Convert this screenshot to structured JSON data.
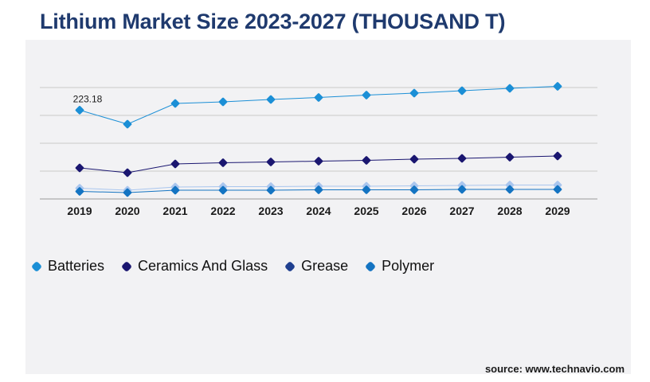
{
  "title": "Lithium Market Size 2023-2027 (THOUSAND T)",
  "source": "source: www.technavio.com",
  "chart_data": {
    "type": "line",
    "categories": [
      "2019",
      "2020",
      "2021",
      "2022",
      "2023",
      "2024",
      "2025",
      "2026",
      "2027",
      "2028",
      "2029"
    ],
    "ylim": [
      0,
      280
    ],
    "grid": true,
    "legend_placement": "bottom-left",
    "series": [
      {
        "name": "Batteries",
        "color": "#1b8fd6",
        "values": [
          223.18,
          188,
          240,
          244,
          250,
          255,
          261,
          266,
          272,
          278,
          283
        ]
      },
      {
        "name": "Ceramics And Glass",
        "color": "#1a1670",
        "values": [
          78,
          66,
          88,
          91,
          93,
          95,
          97,
          100,
          102,
          105,
          108
        ]
      },
      {
        "name": "Grease",
        "color": "#aac6ee",
        "values": [
          27,
          22,
          30,
          31,
          31,
          32,
          32,
          33,
          34,
          35,
          35
        ]
      },
      {
        "name": "Polymer",
        "color": "#1474c2",
        "values": [
          19,
          16,
          22,
          22,
          22,
          23,
          23,
          23,
          24,
          24,
          24
        ]
      }
    ],
    "data_labels": [
      {
        "series": 0,
        "index": 0,
        "text": "223.18"
      }
    ]
  }
}
